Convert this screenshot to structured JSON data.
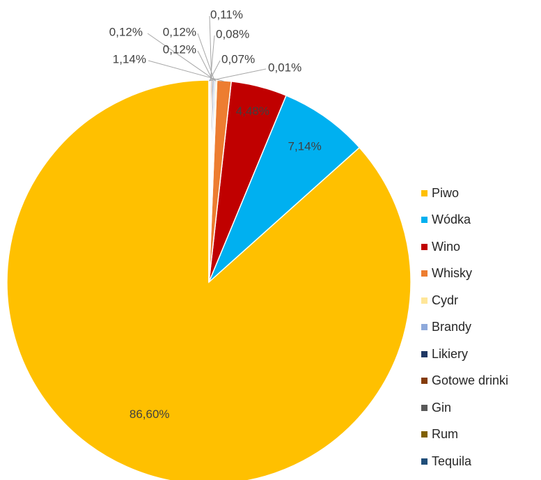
{
  "chart_data": {
    "type": "pie",
    "title": "",
    "categories": [
      "Piwo",
      "Wódka",
      "Wino",
      "Whisky",
      "Cydr",
      "Brandy",
      "Likiery",
      "Gotowe drinki",
      "Gin",
      "Rum",
      "Tequila"
    ],
    "values": [
      86.6,
      7.14,
      4.48,
      1.14,
      0.12,
      0.12,
      0.12,
      0.11,
      0.08,
      0.07,
      0.01
    ],
    "labels": [
      "86,60%",
      "7,14%",
      "4,48%",
      "1,14%",
      "0,12%",
      "0,12%",
      "0,12%",
      "0,11%",
      "0,08%",
      "0,07%",
      "0,01%"
    ],
    "colors": [
      "#FFC000",
      "#00B0F0",
      "#C00000",
      "#ED7D31",
      "#FFE699",
      "#8EA9DB",
      "#1F3864",
      "#843C0C",
      "#595959",
      "#806000",
      "#1F4E79"
    ],
    "start_angle": "12 o'clock",
    "direction": "counterclockwise",
    "legend_position": "right"
  }
}
